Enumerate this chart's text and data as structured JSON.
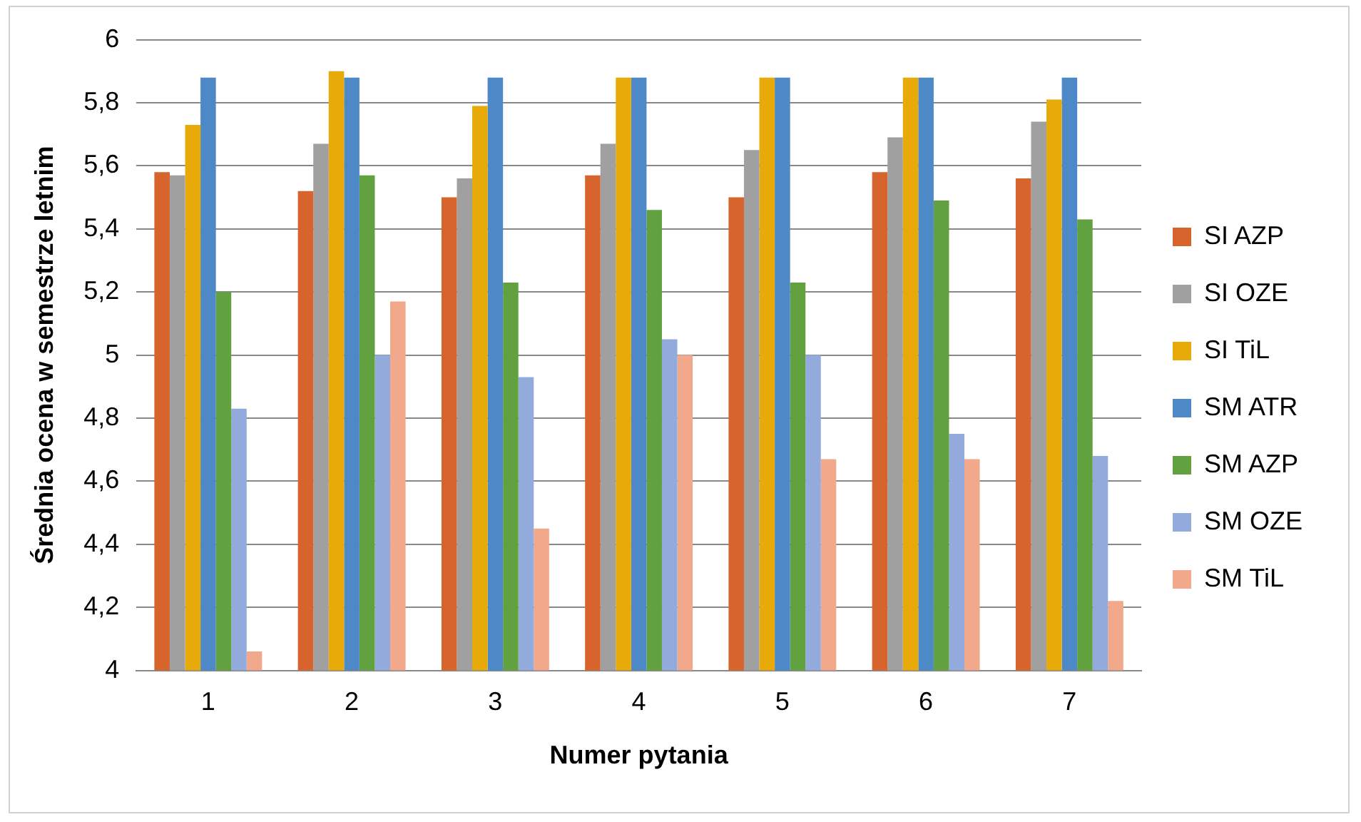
{
  "chart_data": {
    "type": "bar",
    "xlabel": "Numer pytania",
    "ylabel": "Średnia ocena w semestrze letnim",
    "categories": [
      "1",
      "2",
      "3",
      "4",
      "5",
      "6",
      "7"
    ],
    "series": [
      {
        "name": "SI AZP",
        "color": "#d6642c",
        "values": [
          5.58,
          5.52,
          5.5,
          5.57,
          5.5,
          5.58,
          5.56
        ]
      },
      {
        "name": "SI OZE",
        "color": "#a0a0a0",
        "values": [
          5.57,
          5.67,
          5.56,
          5.67,
          5.65,
          5.69,
          5.74
        ]
      },
      {
        "name": "SI TiL",
        "color": "#e8aa08",
        "values": [
          5.73,
          5.9,
          5.79,
          5.88,
          5.88,
          5.88,
          5.81
        ]
      },
      {
        "name": "SM ATR",
        "color": "#4d89c7",
        "values": [
          5.88,
          5.88,
          5.88,
          5.88,
          5.88,
          5.88,
          5.88
        ]
      },
      {
        "name": "SM AZP",
        "color": "#62a13f",
        "values": [
          5.2,
          5.57,
          5.23,
          5.46,
          5.23,
          5.49,
          5.43
        ]
      },
      {
        "name": "SM OZE",
        "color": "#93abdc",
        "values": [
          4.83,
          5.0,
          4.93,
          5.05,
          5.0,
          4.75,
          4.68
        ]
      },
      {
        "name": "SM TiL",
        "color": "#f2a88b",
        "values": [
          4.06,
          5.17,
          4.45,
          5.0,
          4.67,
          4.67,
          4.22
        ]
      }
    ],
    "ylim": [
      4,
      6
    ],
    "yticks": [
      4,
      {
        "value": 4.2,
        "label": "4,2"
      },
      {
        "value": 4.4,
        "label": "4,4"
      },
      {
        "value": 4.6,
        "label": "4,6"
      },
      {
        "value": 4.8,
        "label": "4,8"
      },
      5,
      {
        "value": 5.2,
        "label": "5,2"
      },
      {
        "value": 5.4,
        "label": "5,4"
      },
      {
        "value": 5.6,
        "label": "5,6"
      },
      {
        "value": 5.8,
        "label": "5,8"
      },
      6
    ],
    "grid": "y",
    "legend": "right"
  }
}
